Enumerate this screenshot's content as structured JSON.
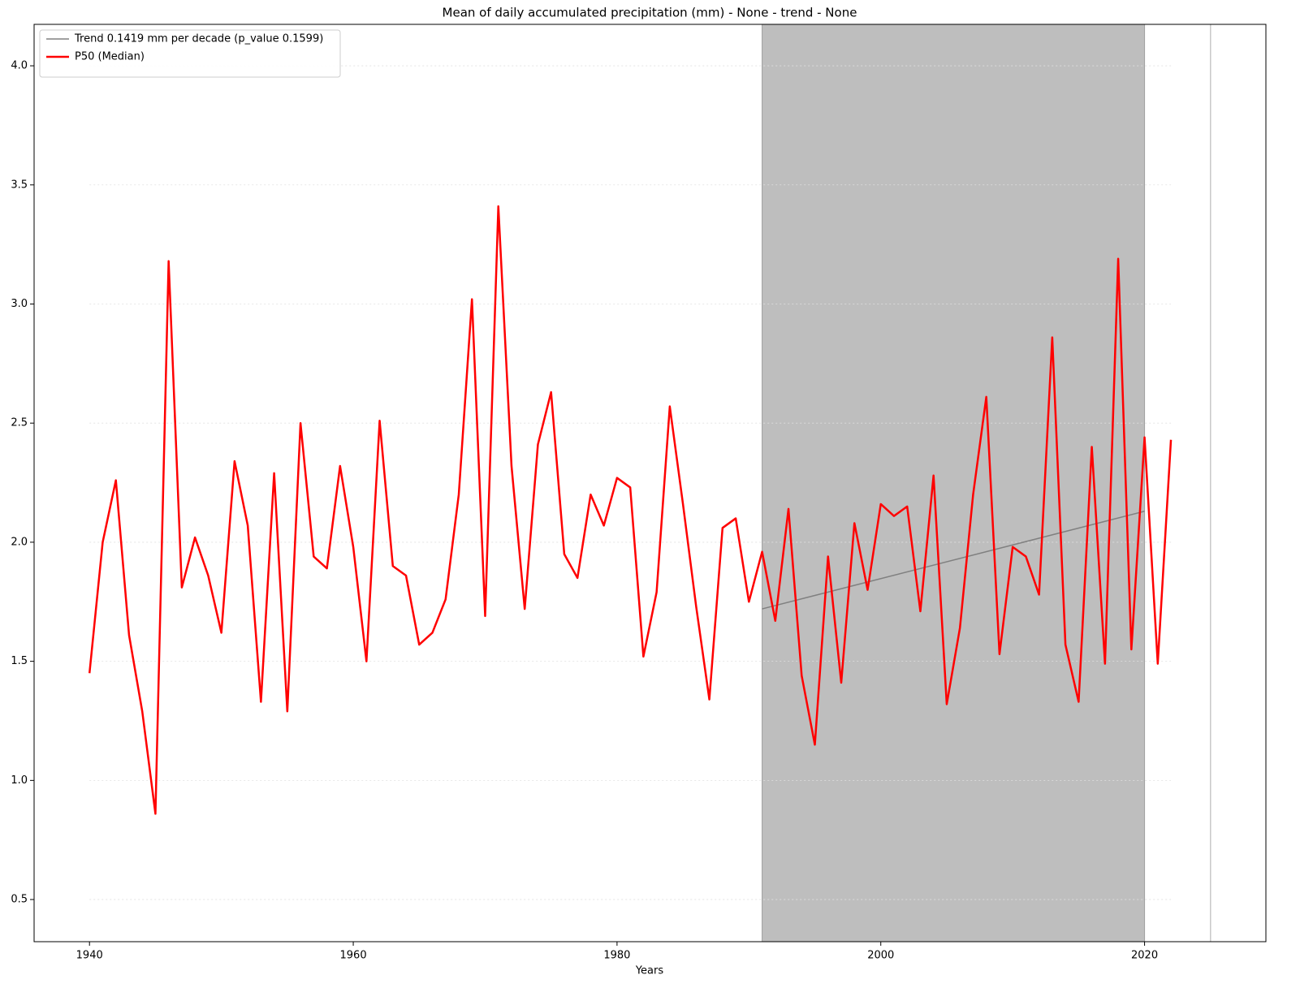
{
  "chart_data": {
    "type": "line",
    "title": "Mean of daily accumulated precipitation (mm) - None - trend  - None",
    "xlabel": "Years",
    "xlim": [
      1935.8,
      2029.2
    ],
    "ylim": [
      0.323,
      4.174
    ],
    "xticks": [
      1940,
      1960,
      1980,
      2000,
      2020
    ],
    "yticks": [
      0.5,
      {
        "value": 1.0,
        "label": "1.0"
      },
      1.5,
      {
        "value": 2.0,
        "label": "2.0"
      },
      2.5,
      {
        "value": 3.0,
        "label": "3.0"
      },
      3.5,
      {
        "value": 4.0,
        "label": "4.0"
      }
    ],
    "grid": true,
    "legend": "upper left",
    "span": [
      1991,
      2020
    ],
    "span_color": "#bebebe",
    "vline": 2025,
    "series": [
      {
        "name": "Trend 0.1419 mm per decade (p_value 0.1599)",
        "color": "#808080",
        "x": [
          1991,
          2020
        ],
        "values": [
          1.72,
          2.13
        ]
      },
      {
        "name": "P50 (Median)",
        "color": "#ff0000",
        "x": [
          1940,
          1941,
          1942,
          1943,
          1944,
          1945,
          1946,
          1947,
          1948,
          1949,
          1950,
          1951,
          1952,
          1953,
          1954,
          1955,
          1956,
          1957,
          1958,
          1959,
          1960,
          1961,
          1962,
          1963,
          1964,
          1965,
          1966,
          1967,
          1968,
          1969,
          1970,
          1971,
          1972,
          1973,
          1974,
          1975,
          1976,
          1977,
          1978,
          1979,
          1980,
          1981,
          1982,
          1983,
          1984,
          1985,
          1986,
          1987,
          1988,
          1989,
          1990,
          1991,
          1992,
          1993,
          1994,
          1995,
          1996,
          1997,
          1998,
          1999,
          2000,
          2001,
          2002,
          2003,
          2004,
          2005,
          2006,
          2007,
          2008,
          2009,
          2010,
          2011,
          2012,
          2013,
          2014,
          2015,
          2016,
          2017,
          2018,
          2019,
          2020,
          2021,
          2022
        ],
        "values": [
          1.45,
          2.0,
          2.26,
          1.61,
          1.29,
          0.86,
          3.18,
          1.81,
          2.02,
          1.86,
          1.62,
          2.34,
          2.07,
          1.33,
          2.29,
          1.29,
          2.5,
          1.94,
          1.89,
          2.32,
          1.98,
          1.5,
          2.51,
          1.9,
          1.86,
          1.57,
          1.62,
          1.76,
          2.2,
          3.02,
          1.69,
          3.41,
          2.32,
          1.72,
          2.41,
          2.63,
          1.95,
          1.85,
          2.2,
          2.07,
          2.27,
          2.23,
          1.52,
          1.79,
          2.57,
          2.16,
          1.73,
          1.34,
          2.06,
          2.1,
          1.75,
          1.96,
          1.67,
          2.14,
          1.44,
          1.15,
          1.94,
          1.41,
          2.08,
          1.8,
          2.16,
          2.11,
          2.15,
          1.71,
          2.28,
          1.32,
          1.64,
          2.2,
          2.61,
          1.53,
          1.98,
          1.94,
          1.78,
          2.86,
          1.57,
          1.33,
          2.4,
          1.49,
          3.19,
          1.55,
          2.44,
          1.49,
          2.43
        ]
      }
    ]
  }
}
